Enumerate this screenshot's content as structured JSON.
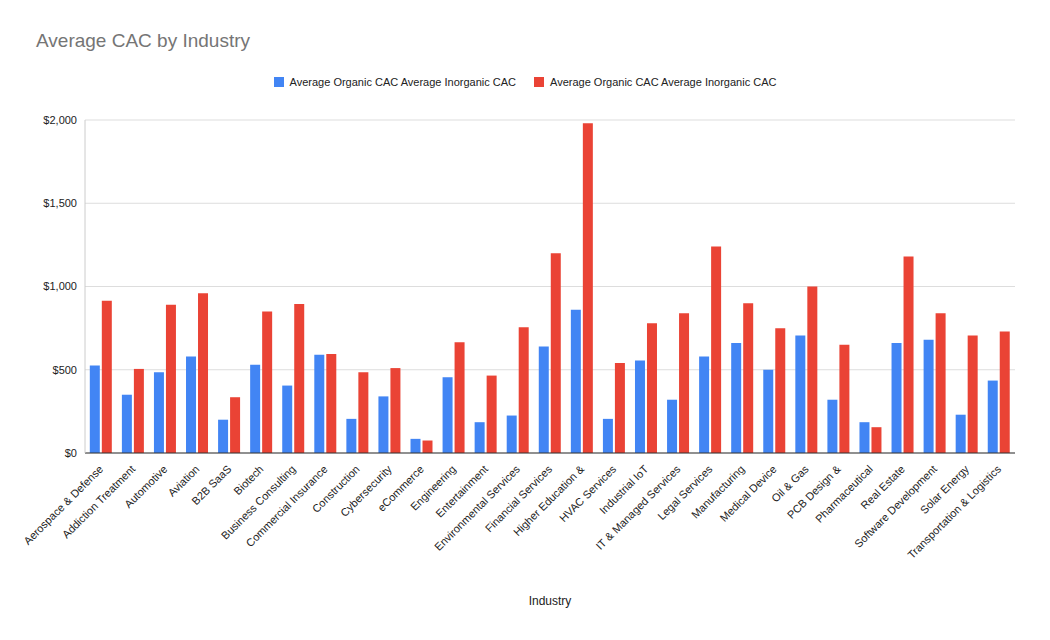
{
  "chart_data": {
    "type": "bar",
    "title": "Average CAC by Industry",
    "x_label": "Industry",
    "categories": [
      "Aerospace & Defense",
      "Addiction Treatment",
      "Automotive",
      "Aviation",
      "B2B SaaS",
      "Biotech",
      "Business Consulting",
      "Commercial Insurance",
      "Construction",
      "Cybersecurity",
      "eCommerce",
      "Engineering",
      "Entertainment",
      "Environmental Services",
      "Financial Services",
      "Higher Education &",
      "HVAC Services",
      "Industrial IoT",
      "IT & Managed Services",
      "Legal Services",
      "Manufacturing",
      "Medical Device",
      "Oil & Gas",
      "PCB Design &",
      "Pharmaceutical",
      "Real Estate",
      "Software Development",
      "Solar Energy",
      "Transportation & Logistics"
    ],
    "series": [
      {
        "name": "Average Organic CAC Average Inorganic CAC",
        "color": "#4285f4",
        "values": [
          525,
          350,
          485,
          580,
          200,
          530,
          405,
          590,
          205,
          340,
          85,
          455,
          185,
          225,
          640,
          860,
          205,
          555,
          320,
          580,
          660,
          500,
          705,
          320,
          185,
          660,
          680,
          230,
          435
        ]
      },
      {
        "name": "Average Organic CAC Average Inorganic CAC",
        "color": "#ea4335",
        "values": [
          915,
          505,
          890,
          960,
          335,
          850,
          895,
          595,
          485,
          510,
          75,
          665,
          465,
          755,
          1200,
          1980,
          540,
          780,
          840,
          1240,
          900,
          750,
          1000,
          650,
          155,
          1180,
          840,
          705,
          730
        ]
      }
    ],
    "ylim": [
      0,
      2000
    ],
    "yticks": [
      {
        "value": 0,
        "label": "$0"
      },
      {
        "value": 500,
        "label": "$500"
      },
      {
        "value": 1000,
        "label": "$1,000"
      },
      {
        "value": 1500,
        "label": "$1,500"
      },
      {
        "value": 2000,
        "label": "$2,000"
      }
    ],
    "grid": true,
    "legend": "top"
  }
}
